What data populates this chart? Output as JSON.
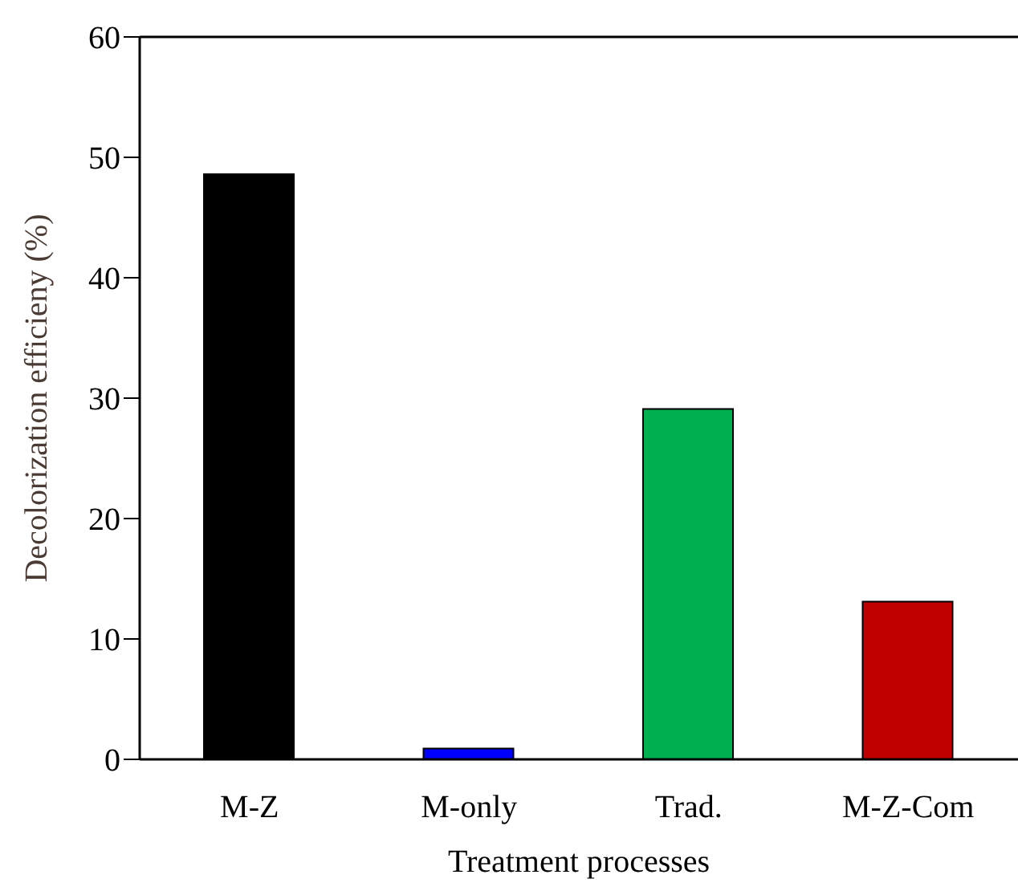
{
  "chart_data": {
    "type": "bar",
    "xlabel": "Treatment processes",
    "ylabel": "Decolorization efficieny (%)",
    "categories": [
      "M-Z",
      "M-only",
      "Trad.",
      "M-Z-Com"
    ],
    "values": [
      48.6,
      0.9,
      29.1,
      13.1
    ],
    "colors": [
      "#000000",
      "#0000ff",
      "#00b050",
      "#c00000"
    ],
    "ylim": [
      0,
      60
    ],
    "yticks": [
      0,
      10,
      20,
      30,
      40,
      50,
      60
    ],
    "grid": false
  }
}
